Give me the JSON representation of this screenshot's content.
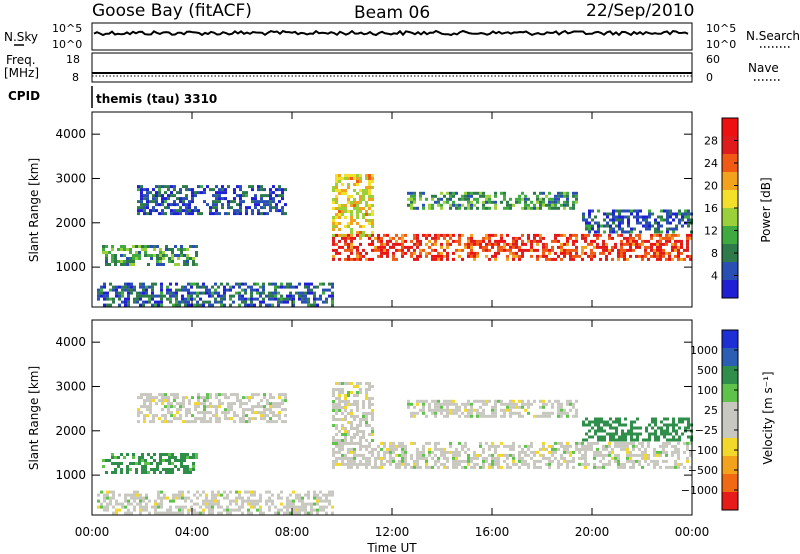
{
  "header": {
    "station": "Goose Bay (fitACF)",
    "beam": "Beam 06",
    "date": "22/Sep/2010"
  },
  "noise_panel": {
    "left_label": "N.Sky",
    "left_ticks": [
      "10^5",
      "10^0"
    ],
    "right_ticks": [
      "10^5",
      "10^0"
    ],
    "right_label": "N.Search"
  },
  "freq_panel": {
    "left_label_line1": "Freq.",
    "left_label_line2": "[MHz]",
    "left_ticks": [
      "18",
      "8"
    ],
    "right_ticks": [
      "60",
      "0"
    ],
    "right_label": "Nave"
  },
  "cpid_panel": {
    "label": "CPID",
    "program": "themis (tau) 3310"
  },
  "colors": {
    "power_scale": [
      "#1f1fd6",
      "#2a4fb4",
      "#2f7a4a",
      "#3faa3f",
      "#9ad13a",
      "#f2e02a",
      "#f2a21c",
      "#f05a14",
      "#e01b1b",
      "#ee1111"
    ],
    "velocity_scale": [
      "#e81b1b",
      "#f06a14",
      "#f2a21c",
      "#f2d82a",
      "#c8c8c0",
      "#c8c8c0",
      "#5fc24a",
      "#2f8f4a",
      "#2a5fb4",
      "#1f2fd6"
    ],
    "ground_scatter": "#c8c8c0"
  },
  "chart_data": [
    {
      "type": "heatmap",
      "panel": "power",
      "ylabel": "Slant Range [km]",
      "y_ticks": [
        "1000",
        "2000",
        "3000",
        "4000"
      ],
      "ylim": [
        100,
        4500
      ],
      "xlim": [
        0,
        24
      ],
      "colorbar_label": "Power [dB]",
      "colorbar_ticks": [
        "4",
        "8",
        "12",
        "16",
        "20",
        "24",
        "28"
      ],
      "colorbar_range": [
        0,
        32
      ],
      "regions": [
        {
          "t0": 0.4,
          "t1": 4.2,
          "r0": 1050,
          "r1": 1500,
          "value": 10
        },
        {
          "t0": 1.8,
          "t1": 7.8,
          "r0": 2200,
          "r1": 2850,
          "value": 5
        },
        {
          "t0": 0.2,
          "t1": 9.6,
          "r0": 150,
          "r1": 650,
          "value": 6
        },
        {
          "t0": 9.6,
          "t1": 24.0,
          "r0": 1150,
          "r1": 1750,
          "value": 26
        },
        {
          "t0": 9.6,
          "t1": 11.2,
          "r0": 1700,
          "r1": 3100,
          "value": 18
        },
        {
          "t0": 12.6,
          "t1": 19.4,
          "r0": 2350,
          "r1": 2700,
          "value": 10
        },
        {
          "t0": 19.6,
          "t1": 24.0,
          "r0": 1800,
          "r1": 2300,
          "value": 6
        }
      ]
    },
    {
      "type": "heatmap",
      "panel": "velocity",
      "ylabel": "Slant Range [km]",
      "y_ticks": [
        "1000",
        "2000",
        "3000",
        "4000"
      ],
      "ylim": [
        100,
        4500
      ],
      "xlim": [
        0,
        24
      ],
      "xlabel": "Time UT",
      "x_ticks": [
        "00:00",
        "04:00",
        "08:00",
        "12:00",
        "16:00",
        "20:00",
        "00:00"
      ],
      "colorbar_label": "Velocity [m s⁻¹]",
      "colorbar_ticks": [
        "1000",
        "500",
        "100",
        "25",
        "−25",
        "−100",
        "−500",
        "−1000"
      ],
      "regions": [
        {
          "t0": 0.4,
          "t1": 4.2,
          "r0": 1050,
          "r1": 1500,
          "value": 120
        },
        {
          "t0": 1.8,
          "t1": 7.8,
          "r0": 2200,
          "r1": 2850,
          "value": 0
        },
        {
          "t0": 0.2,
          "t1": 9.6,
          "r0": 150,
          "r1": 650,
          "value": 0
        },
        {
          "t0": 9.6,
          "t1": 24.0,
          "r0": 1150,
          "r1": 1750,
          "value": 0
        },
        {
          "t0": 9.6,
          "t1": 11.2,
          "r0": 1700,
          "r1": 3100,
          "value": 0
        },
        {
          "t0": 12.6,
          "t1": 19.4,
          "r0": 2350,
          "r1": 2700,
          "value": 0
        },
        {
          "t0": 19.6,
          "t1": 24.0,
          "r0": 1800,
          "r1": 2300,
          "value": 200
        }
      ]
    }
  ]
}
